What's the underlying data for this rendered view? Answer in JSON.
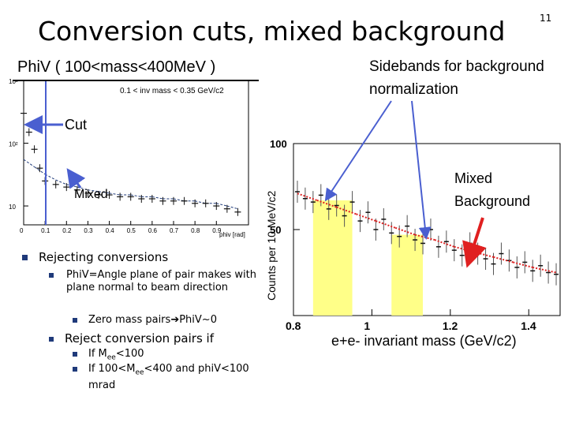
{
  "slide": {
    "title": "Conversion cuts, mixed background",
    "number": "11",
    "subtitle": "PhiV ( 100<mass<400MeV )",
    "sideband_note": "Sidebands for background normalization"
  },
  "bullets": {
    "b1": "Rejecting conversions",
    "b1a": "PhiV=Angle plane of pair makes with plane normal to beam direction",
    "b1a_1": "Zero mass pairs",
    "b1a_1_arrow": "➔",
    "b1a_1_rest": "PhiV~0",
    "b2": "Reject conversion pairs if",
    "b2_1_pre": "If M",
    "b2_1_sub": "ee",
    "b2_1_post": "<100",
    "b2_2_pre": "If 100<M",
    "b2_2_sub": "ee",
    "b2_2_post": "<400 and phiV<100 mrad"
  },
  "colors": {
    "arrow_blue": "#4a5fd0",
    "arrow_red": "#e02020",
    "sideband_fill": "#ffff88",
    "data_black": "#111111",
    "fit_red": "#dd2222",
    "bullet_blue": "#1f3a7a"
  },
  "chart_data": [
    {
      "type": "line",
      "title": "0.1 < inv mass < 0.35 GeV/c2",
      "xlabel": "phiv [rad]",
      "ylabel": "",
      "xlim": [
        0,
        1.05
      ],
      "ylim_log": [
        5,
        1000
      ],
      "x_ticks": [
        "0",
        "0.1",
        "0.2",
        "0.3",
        "0.4",
        "0.5",
        "0.6",
        "0.7",
        "0.8",
        "0.9"
      ],
      "y_ticks": [
        "10",
        "10²",
        "10³"
      ],
      "cut_x": 0.1,
      "annotations": [
        "Cut",
        "Mixed"
      ],
      "series": [
        {
          "name": "data",
          "x": [
            0.0,
            0.025,
            0.05,
            0.075,
            0.1,
            0.15,
            0.2,
            0.25,
            0.3,
            0.35,
            0.4,
            0.45,
            0.5,
            0.55,
            0.6,
            0.65,
            0.7,
            0.75,
            0.8,
            0.85,
            0.9,
            0.95,
            1.0
          ],
          "values": [
            300,
            150,
            80,
            40,
            25,
            22,
            20,
            18,
            16,
            15,
            15,
            14,
            14,
            13,
            13,
            12,
            12,
            12,
            11,
            11,
            10,
            9,
            8
          ]
        },
        {
          "name": "mixed",
          "x": [
            0.0,
            0.05,
            0.1,
            0.15,
            0.2,
            0.25,
            0.3,
            0.35,
            0.4,
            0.45,
            0.5,
            0.55,
            0.6,
            0.65,
            0.7,
            0.75,
            0.8,
            0.85,
            0.9,
            0.95,
            1.0
          ],
          "values": [
            55,
            42,
            32,
            26,
            22,
            20,
            18,
            17,
            16,
            15,
            15,
            14,
            14,
            13,
            13,
            12,
            12,
            11,
            11,
            10,
            9
          ]
        }
      ]
    },
    {
      "type": "scatter",
      "title": "",
      "xlabel": "e+e- invariant mass (GeV/c2)",
      "ylabel": "Counts per 10 MeV/c2",
      "xlim": [
        0.8,
        1.48
      ],
      "ylim": [
        0,
        100
      ],
      "x_ticks": [
        "0.8",
        "1",
        "1.2",
        "1.4"
      ],
      "y_ticks": [
        "50",
        "100"
      ],
      "sidebands": [
        [
          0.85,
          0.95
        ],
        [
          1.05,
          1.13
        ]
      ],
      "annotations": [
        "Mixed Background"
      ],
      "series": [
        {
          "name": "data",
          "x": [
            0.81,
            0.83,
            0.85,
            0.87,
            0.89,
            0.91,
            0.93,
            0.95,
            0.97,
            0.99,
            1.01,
            1.03,
            1.05,
            1.07,
            1.09,
            1.11,
            1.13,
            1.15,
            1.17,
            1.19,
            1.21,
            1.23,
            1.25,
            1.27,
            1.29,
            1.31,
            1.33,
            1.35,
            1.37,
            1.39,
            1.41,
            1.43,
            1.45,
            1.47
          ],
          "values": [
            72,
            68,
            66,
            70,
            62,
            64,
            58,
            66,
            55,
            60,
            50,
            56,
            48,
            46,
            52,
            44,
            42,
            50,
            40,
            43,
            38,
            35,
            42,
            36,
            33,
            30,
            36,
            32,
            28,
            31,
            26,
            29,
            25,
            24
          ]
        },
        {
          "name": "mixed background",
          "x": [
            0.81,
            0.86,
            0.91,
            0.96,
            1.01,
            1.06,
            1.11,
            1.16,
            1.21,
            1.26,
            1.31,
            1.36,
            1.41,
            1.47
          ],
          "values": [
            71,
            67,
            63,
            59,
            55,
            51,
            47,
            44,
            40,
            37,
            34,
            31,
            28,
            25
          ]
        }
      ]
    }
  ]
}
